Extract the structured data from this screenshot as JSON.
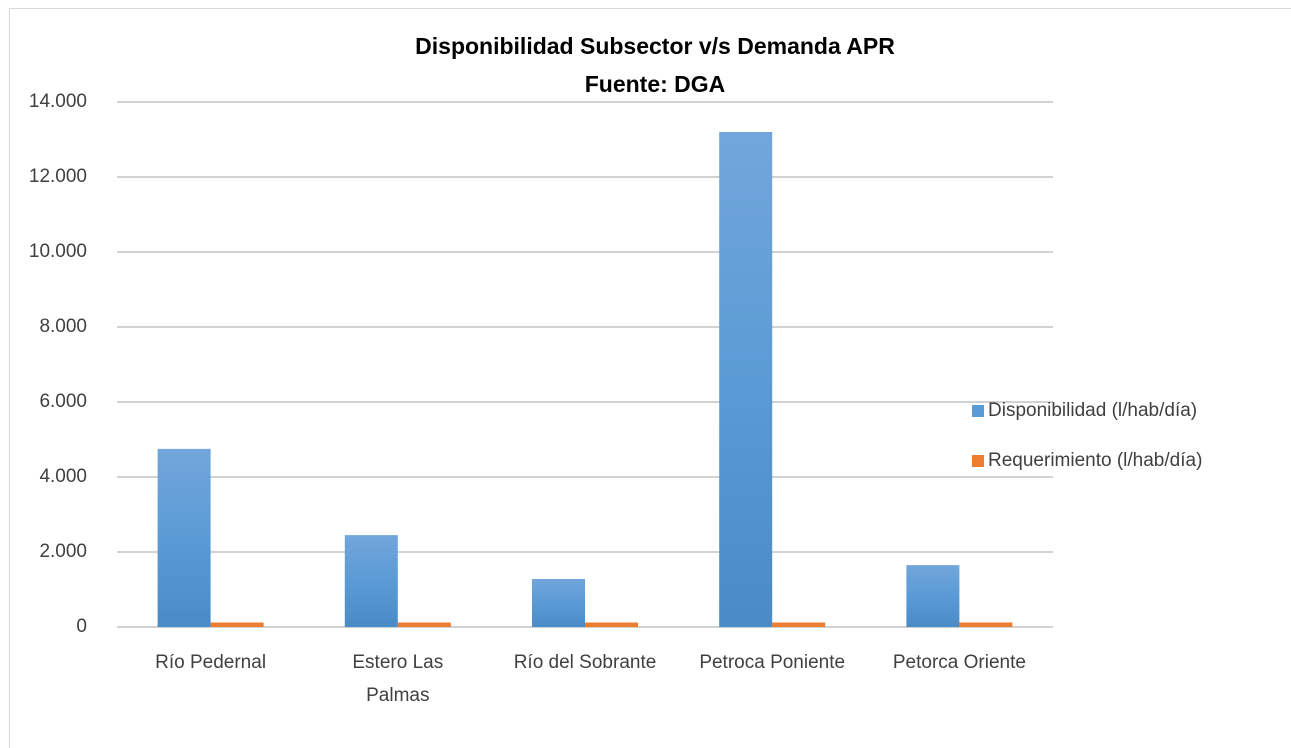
{
  "chart_data": {
    "type": "bar",
    "title": "Disponibilidad Subsector v/s Demanda APR",
    "subtitle": "Fuente: DGA",
    "categories": [
      "Río Pedernal",
      "Estero Las Palmas",
      "Río del Sobrante",
      "Petroca Poniente",
      "Petorca Oriente"
    ],
    "series": [
      {
        "name": "Disponibilidad (l/hab/día)",
        "color": "#5b9bd5",
        "values": [
          4750,
          2450,
          1280,
          13200,
          1650
        ]
      },
      {
        "name": "Requerimiento (l/hab/día)",
        "color": "#ed7d31",
        "values": [
          120,
          120,
          120,
          120,
          120
        ]
      }
    ],
    "ylim": [
      0,
      14000
    ],
    "yticks": [
      0,
      {
        "value": 2000,
        "label": "2.000"
      },
      {
        "value": 4000,
        "label": "4.000"
      },
      {
        "value": 6000,
        "label": "6.000"
      },
      {
        "value": 8000,
        "label": "8.000"
      },
      {
        "value": 10000,
        "label": "10.000"
      },
      {
        "value": 12000,
        "label": "12.000"
      },
      {
        "value": 14000,
        "label": "14.000"
      }
    ],
    "grid": true,
    "legend": "right"
  }
}
